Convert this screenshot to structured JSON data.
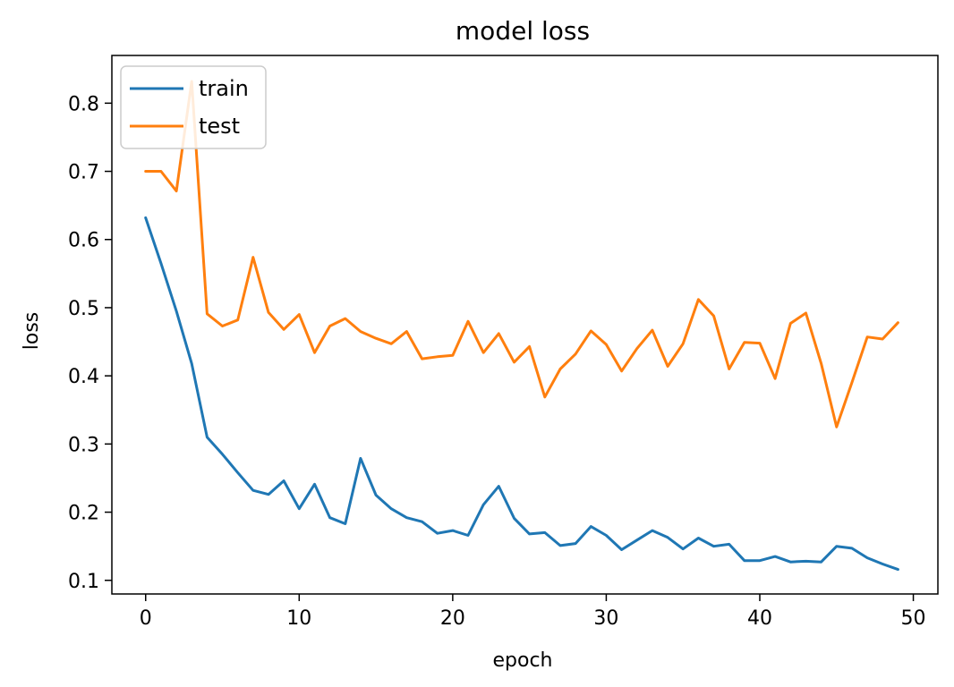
{
  "chart_data": {
    "type": "line",
    "title": "model loss",
    "xlabel": "epoch",
    "ylabel": "loss",
    "xlim": [
      -2.2,
      51.6
    ],
    "ylim": [
      0.08,
      0.87
    ],
    "xticks": [
      0,
      10,
      20,
      30,
      40,
      50
    ],
    "xtick_labels": [
      "0",
      "10",
      "20",
      "30",
      "40",
      "50"
    ],
    "yticks": [
      0.1,
      0.2,
      0.3,
      0.4,
      0.5,
      0.6,
      0.7,
      0.8
    ],
    "ytick_labels": [
      "0.1",
      "0.2",
      "0.3",
      "0.4",
      "0.5",
      "0.6",
      "0.7",
      "0.8"
    ],
    "grid": false,
    "legend": "upper-left",
    "x": [
      0,
      1,
      2,
      3,
      4,
      5,
      6,
      7,
      8,
      9,
      10,
      11,
      12,
      13,
      14,
      15,
      16,
      17,
      18,
      19,
      20,
      21,
      22,
      23,
      24,
      25,
      26,
      27,
      28,
      29,
      30,
      31,
      32,
      33,
      34,
      35,
      36,
      37,
      38,
      39,
      40,
      41,
      42,
      43,
      44,
      45,
      46,
      47,
      48,
      49
    ],
    "series": [
      {
        "name": "train",
        "color": "#1f77b4",
        "values": [
          0.632,
          0.565,
          0.495,
          0.418,
          0.31,
          0.285,
          0.258,
          0.232,
          0.226,
          0.246,
          0.205,
          0.241,
          0.192,
          0.183,
          0.279,
          0.225,
          0.205,
          0.192,
          0.186,
          0.169,
          0.173,
          0.166,
          0.211,
          0.238,
          0.191,
          0.168,
          0.17,
          0.151,
          0.154,
          0.179,
          0.166,
          0.145,
          0.159,
          0.173,
          0.163,
          0.146,
          0.162,
          0.15,
          0.153,
          0.129,
          0.129,
          0.135,
          0.127,
          0.128,
          0.127,
          0.15,
          0.147,
          0.133,
          0.124,
          0.116
        ]
      },
      {
        "name": "test",
        "color": "#ff7f0e",
        "values": [
          0.7,
          0.7,
          0.671,
          0.832,
          0.491,
          0.473,
          0.482,
          0.574,
          0.493,
          0.468,
          0.49,
          0.434,
          0.473,
          0.484,
          0.465,
          0.455,
          0.447,
          0.465,
          0.425,
          0.428,
          0.43,
          0.48,
          0.434,
          0.462,
          0.42,
          0.443,
          0.369,
          0.41,
          0.432,
          0.466,
          0.446,
          0.407,
          0.44,
          0.467,
          0.414,
          0.447,
          0.512,
          0.488,
          0.41,
          0.449,
          0.448,
          0.396,
          0.477,
          0.492,
          0.418,
          0.325,
          0.39,
          0.457,
          0.454,
          0.478
        ]
      }
    ]
  }
}
